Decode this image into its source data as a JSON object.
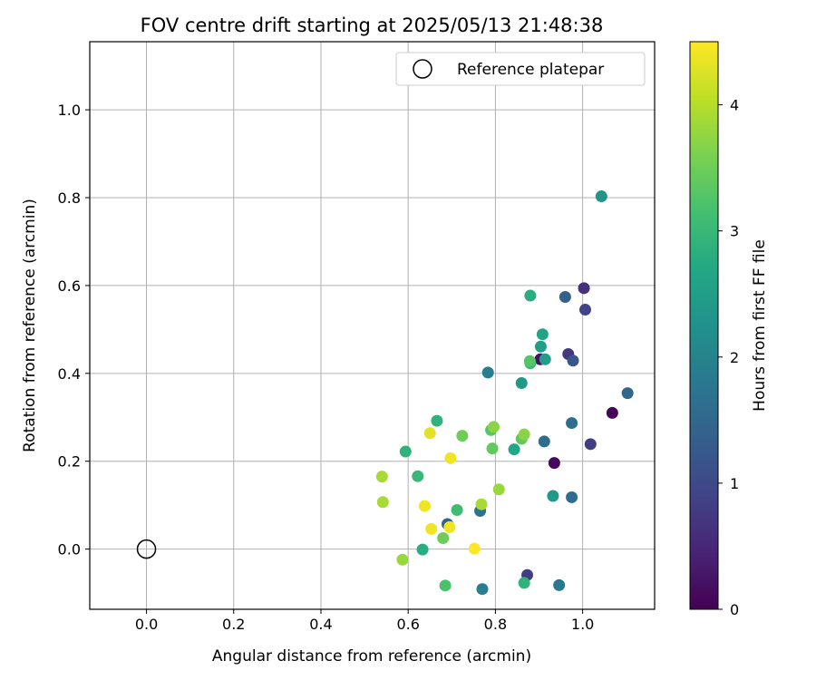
{
  "chart_data": {
    "type": "scatter",
    "title": "FOV centre drift starting at 2025/05/13 21:48:38",
    "xlabel": "Angular distance from reference (arcmin)",
    "ylabel": "Rotation from reference (arcmin)",
    "xlim": [
      -0.13,
      1.165
    ],
    "ylim": [
      -0.137,
      1.155
    ],
    "xticks": [
      "0.0",
      "0.2",
      "0.4",
      "0.6",
      "0.8",
      "1.0"
    ],
    "yticks": [
      "0.0",
      "0.2",
      "0.4",
      "0.6",
      "0.8",
      "1.0"
    ],
    "grid": true,
    "legend": {
      "position": "top-right",
      "entries": [
        "Reference platepar"
      ]
    },
    "reference_point": {
      "x": 0.0,
      "y": 0.0
    },
    "colorbar": {
      "label": "Hours from first FF file",
      "colormap": "viridis",
      "range": [
        0,
        4.5
      ],
      "ticks": [
        "0",
        "1",
        "2",
        "3",
        "4"
      ]
    },
    "series": [
      {
        "points": [
          {
            "x": 1.068,
            "y": 0.31,
            "h": 0.05
          },
          {
            "x": 0.935,
            "y": 0.196,
            "h": 0.1
          },
          {
            "x": 0.903,
            "y": 0.432,
            "h": 0.2
          },
          {
            "x": 1.003,
            "y": 0.594,
            "h": 0.6
          },
          {
            "x": 0.967,
            "y": 0.444,
            "h": 0.7
          },
          {
            "x": 0.873,
            "y": -0.059,
            "h": 0.8
          },
          {
            "x": 1.018,
            "y": 0.239,
            "h": 0.8
          },
          {
            "x": 1.006,
            "y": 0.545,
            "h": 0.9
          },
          {
            "x": 0.978,
            "y": 0.429,
            "h": 1.2
          },
          {
            "x": 0.96,
            "y": 0.574,
            "h": 1.4
          },
          {
            "x": 0.69,
            "y": 0.057,
            "h": 1.5
          },
          {
            "x": 1.103,
            "y": 0.355,
            "h": 1.5
          },
          {
            "x": 0.975,
            "y": 0.287,
            "h": 1.6
          },
          {
            "x": 0.975,
            "y": 0.118,
            "h": 1.6
          },
          {
            "x": 0.912,
            "y": 0.245,
            "h": 1.6
          },
          {
            "x": 0.765,
            "y": 0.087,
            "h": 1.7
          },
          {
            "x": 0.946,
            "y": -0.082,
            "h": 1.8
          },
          {
            "x": 0.77,
            "y": -0.091,
            "h": 1.9
          },
          {
            "x": 0.783,
            "y": 0.402,
            "h": 1.9
          },
          {
            "x": 1.043,
            "y": 0.803,
            "h": 2.3
          },
          {
            "x": 0.932,
            "y": 0.121,
            "h": 2.4
          },
          {
            "x": 0.86,
            "y": 0.378,
            "h": 2.4
          },
          {
            "x": 0.904,
            "y": 0.461,
            "h": 2.5
          },
          {
            "x": 0.914,
            "y": 0.432,
            "h": 2.5
          },
          {
            "x": 0.908,
            "y": 0.489,
            "h": 2.6
          },
          {
            "x": 0.843,
            "y": 0.227,
            "h": 2.7
          },
          {
            "x": 0.88,
            "y": 0.577,
            "h": 2.8
          },
          {
            "x": 0.633,
            "y": -0.001,
            "h": 2.8
          },
          {
            "x": 0.666,
            "y": 0.292,
            "h": 2.9
          },
          {
            "x": 0.594,
            "y": 0.222,
            "h": 2.9
          },
          {
            "x": 0.866,
            "y": -0.077,
            "h": 2.9
          },
          {
            "x": 0.88,
            "y": 0.423,
            "h": 3.0
          },
          {
            "x": 0.622,
            "y": 0.166,
            "h": 3.0
          },
          {
            "x": 0.712,
            "y": 0.089,
            "h": 3.1
          },
          {
            "x": 0.685,
            "y": -0.083,
            "h": 3.2
          },
          {
            "x": 0.879,
            "y": 0.428,
            "h": 3.3
          },
          {
            "x": 0.79,
            "y": 0.271,
            "h": 3.3
          },
          {
            "x": 0.793,
            "y": 0.229,
            "h": 3.4
          },
          {
            "x": 0.86,
            "y": 0.251,
            "h": 3.4
          },
          {
            "x": 0.68,
            "y": 0.025,
            "h": 3.5
          },
          {
            "x": 0.724,
            "y": 0.258,
            "h": 3.5
          },
          {
            "x": 0.796,
            "y": 0.278,
            "h": 3.7
          },
          {
            "x": 0.866,
            "y": 0.261,
            "h": 3.7
          },
          {
            "x": 0.808,
            "y": 0.136,
            "h": 3.8
          },
          {
            "x": 0.587,
            "y": -0.024,
            "h": 3.8
          },
          {
            "x": 0.542,
            "y": 0.107,
            "h": 3.9
          },
          {
            "x": 0.54,
            "y": 0.165,
            "h": 3.9
          },
          {
            "x": 0.768,
            "y": 0.102,
            "h": 3.9
          },
          {
            "x": 0.65,
            "y": 0.264,
            "h": 4.3
          },
          {
            "x": 0.697,
            "y": 0.207,
            "h": 4.4
          },
          {
            "x": 0.638,
            "y": 0.098,
            "h": 4.4
          },
          {
            "x": 0.653,
            "y": 0.046,
            "h": 4.4
          },
          {
            "x": 0.695,
            "y": 0.05,
            "h": 4.4
          },
          {
            "x": 0.752,
            "y": 0.001,
            "h": 4.5
          }
        ]
      }
    ]
  }
}
